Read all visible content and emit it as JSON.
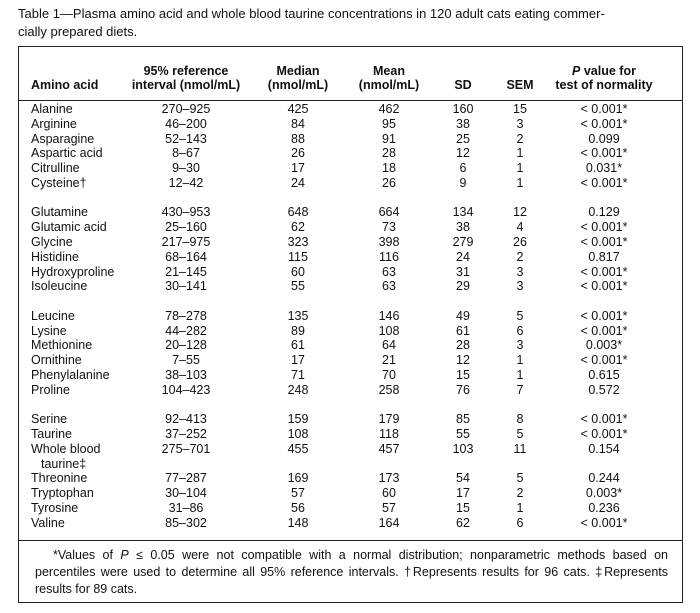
{
  "caption": [
    "Table 1—Plasma amino acid and whole blood taurine concentrations in 120 adult cats eating commer-",
    "cially prepared diets."
  ],
  "table": {
    "headers": [
      {
        "lines": [
          "Amino acid"
        ]
      },
      {
        "lines": [
          "95% reference",
          "interval (nmol/mL)"
        ]
      },
      {
        "lines": [
          "Median",
          "(nmol/mL)"
        ]
      },
      {
        "lines": [
          "Mean",
          "(nmol/mL)"
        ]
      },
      {
        "lines": [
          "SD"
        ]
      },
      {
        "lines": [
          "SEM"
        ]
      },
      {
        "lead": "P",
        "lines": [
          " value for",
          "test of normality"
        ]
      }
    ],
    "groups": [
      [
        [
          "Alanine",
          "270–925",
          "425",
          "462",
          "160",
          "15",
          "< 0.001*"
        ],
        [
          "Arginine",
          "46–200",
          "84",
          "95",
          "38",
          "3",
          "< 0.001*"
        ],
        [
          "Asparagine",
          "52–143",
          "88",
          "91",
          "25",
          "2",
          "0.099"
        ],
        [
          "Aspartic acid",
          "8–67",
          "26",
          "28",
          "12",
          "1",
          "< 0.001*"
        ],
        [
          "Citrulline",
          "9–30",
          "17",
          "18",
          "6",
          "1",
          "0.031*"
        ],
        [
          "Cysteine†",
          "12–42",
          "24",
          "26",
          "9",
          "1",
          "< 0.001*"
        ]
      ],
      [
        [
          "Glutamine",
          "430–953",
          "648",
          "664",
          "134",
          "12",
          "0.129"
        ],
        [
          "Glutamic acid",
          "25–160",
          "62",
          "73",
          "38",
          "4",
          "< 0.001*"
        ],
        [
          "Glycine",
          "217–975",
          "323",
          "398",
          "279",
          "26",
          "< 0.001*"
        ],
        [
          "Histidine",
          "68–164",
          "115",
          "116",
          "24",
          "2",
          "0.817"
        ],
        [
          "Hydroxyproline",
          "21–145",
          "60",
          "63",
          "31",
          "3",
          "< 0.001*"
        ],
        [
          "Isoleucine",
          "30–141",
          "55",
          "63",
          "29",
          "3",
          "< 0.001*"
        ]
      ],
      [
        [
          "Leucine",
          "78–278",
          "135",
          "146",
          "49",
          "5",
          "< 0.001*"
        ],
        [
          "Lysine",
          "44–282",
          "89",
          "108",
          "61",
          "6",
          "< 0.001*"
        ],
        [
          "Methionine",
          "20–128",
          "61",
          "64",
          "28",
          "3",
          "0.003*"
        ],
        [
          "Ornithine",
          "7–55",
          "17",
          "21",
          "12",
          "1",
          "< 0.001*"
        ],
        [
          "Phenylalanine",
          "38–103",
          "71",
          "70",
          "15",
          "1",
          "0.615"
        ],
        [
          "Proline",
          "104–423",
          "248",
          "258",
          "76",
          "7",
          "0.572"
        ]
      ],
      [
        [
          "Serine",
          "92–413",
          "159",
          "179",
          "85",
          "8",
          "< 0.001*"
        ],
        [
          "Taurine",
          "37–252",
          "108",
          "118",
          "55",
          "5",
          "< 0.001*"
        ],
        [
          "Whole blood taurine‡",
          "275–701",
          "455",
          "457",
          "103",
          "11",
          "0.154"
        ],
        [
          "Threonine",
          "77–287",
          "169",
          "173",
          "54",
          "5",
          "0.244"
        ],
        [
          "Tryptophan",
          "30–104",
          "57",
          "60",
          "17",
          "2",
          "0.003*"
        ],
        [
          "Tyrosine",
          "31–86",
          "56",
          "57",
          "15",
          "1",
          "0.236"
        ],
        [
          "Valine",
          "85–302",
          "148",
          "164",
          "62",
          "6",
          "< 0.001*"
        ]
      ]
    ]
  },
  "footnote": {
    "parts": [
      "*Values of ",
      "P",
      " ≤ 0.05 were not compatible with a normal distribution; nonparametric methods based on percentiles were used to determine all 95% reference intervals. †Represents results for 96 cats. ‡Represents results for 89 cats."
    ],
    "italic": [
      1
    ]
  }
}
